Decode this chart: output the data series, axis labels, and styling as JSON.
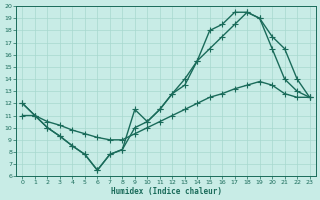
{
  "xlabel": "Humidex (Indice chaleur)",
  "bg_color": "#c8ece6",
  "line_color": "#1a6b5a",
  "grid_color": "#a8d8ce",
  "xlim": [
    -0.5,
    23.5
  ],
  "ylim": [
    6,
    20
  ],
  "xticks": [
    0,
    1,
    2,
    3,
    4,
    5,
    6,
    7,
    8,
    9,
    10,
    11,
    12,
    13,
    14,
    15,
    16,
    17,
    18,
    19,
    20,
    21,
    22,
    23
  ],
  "yticks": [
    6,
    7,
    8,
    9,
    10,
    11,
    12,
    13,
    14,
    15,
    16,
    17,
    18,
    19,
    20
  ],
  "line1_x": [
    0,
    1,
    2,
    3,
    4,
    5,
    6,
    7,
    8,
    9,
    10,
    11,
    12,
    13,
    14,
    15,
    16,
    17,
    18,
    19,
    20,
    21,
    22,
    23
  ],
  "line1_y": [
    12,
    11,
    10,
    9.3,
    8.5,
    7.8,
    6.5,
    7.8,
    8.2,
    11.5,
    10.5,
    11.5,
    12.8,
    14.0,
    15.5,
    18.0,
    18.5,
    19.5,
    19.5,
    19.0,
    16.5,
    14.0,
    13.0,
    12.5
  ],
  "line2_x": [
    0,
    1,
    2,
    3,
    4,
    5,
    6,
    7,
    8,
    9,
    10,
    11,
    12,
    13,
    14,
    15,
    16,
    17,
    18,
    19,
    20,
    21,
    22,
    23
  ],
  "line2_y": [
    12,
    11,
    10,
    9.3,
    8.5,
    7.8,
    6.5,
    7.8,
    8.2,
    10.0,
    10.5,
    11.5,
    12.8,
    13.5,
    15.5,
    16.5,
    17.5,
    18.5,
    19.5,
    19.0,
    17.5,
    16.5,
    14.0,
    12.5
  ],
  "line3_x": [
    0,
    1,
    2,
    3,
    4,
    5,
    6,
    7,
    8,
    9,
    10,
    11,
    12,
    13,
    14,
    15,
    16,
    17,
    18,
    19,
    20,
    21,
    22,
    23
  ],
  "line3_y": [
    11.0,
    11.0,
    10.5,
    10.2,
    9.8,
    9.5,
    9.2,
    9.0,
    9.0,
    9.5,
    10.0,
    10.5,
    11.0,
    11.5,
    12.0,
    12.5,
    12.8,
    13.2,
    13.5,
    13.8,
    13.5,
    12.8,
    12.5,
    12.5
  ],
  "marker": "+",
  "markersize": 4,
  "linewidth": 1.0
}
